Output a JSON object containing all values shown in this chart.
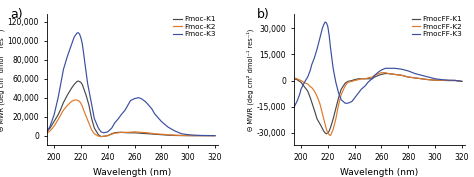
{
  "panel_a": {
    "title": "a)",
    "ylabel": "Θ MWR (deg cm² dmol⁻¹ res⁻¹)",
    "xlabel": "Wavelength (nm)",
    "xlim": [
      195,
      322
    ],
    "ylim": [
      -10000,
      128000
    ],
    "yticks": [
      0,
      20000,
      40000,
      60000,
      80000,
      100000,
      120000
    ],
    "legend": [
      "Fmoc-K1",
      "Fmoc-K2",
      "Fmoc-K3"
    ],
    "colors": [
      "#4a4a4a",
      "#e07828",
      "#3a4fa0"
    ],
    "curves": {
      "K1": {
        "x": [
          195,
          197,
          200,
          203,
          205,
          207,
          210,
          213,
          215,
          217,
          218,
          219,
          220,
          221,
          222,
          224,
          226,
          228,
          230,
          233,
          235,
          238,
          240,
          243,
          245,
          248,
          250,
          255,
          260,
          265,
          270,
          275,
          280,
          285,
          290,
          295,
          300,
          305,
          310,
          315,
          320
        ],
        "y": [
          5000,
          8000,
          15000,
          22000,
          28000,
          35000,
          43000,
          50000,
          54000,
          57000,
          57500,
          57000,
          56000,
          54000,
          50000,
          42000,
          32000,
          18000,
          8000,
          1000,
          -1000,
          -500,
          0,
          2000,
          3000,
          3500,
          3500,
          3000,
          3000,
          2500,
          2000,
          1500,
          1000,
          500,
          200,
          100,
          0,
          0,
          0,
          0,
          0
        ]
      },
      "K2": {
        "x": [
          195,
          197,
          200,
          203,
          205,
          207,
          210,
          213,
          215,
          217,
          218,
          219,
          220,
          221,
          222,
          224,
          226,
          228,
          230,
          233,
          235,
          238,
          240,
          243,
          245,
          248,
          250,
          255,
          260,
          265,
          270,
          275,
          280,
          285,
          290,
          295,
          300,
          305,
          310,
          315,
          320
        ],
        "y": [
          3000,
          5000,
          10000,
          17000,
          22000,
          27000,
          32000,
          36000,
          37500,
          37500,
          37000,
          36000,
          34000,
          31000,
          27000,
          20000,
          13000,
          6000,
          2000,
          -500,
          -1000,
          -500,
          0,
          1500,
          2500,
          3000,
          3500,
          3500,
          4000,
          3500,
          3000,
          2000,
          1500,
          1000,
          500,
          200,
          100,
          0,
          0,
          0,
          0
        ]
      },
      "K3": {
        "x": [
          195,
          197,
          200,
          203,
          205,
          207,
          210,
          213,
          215,
          217,
          218,
          219,
          220,
          221,
          222,
          223,
          225,
          228,
          230,
          233,
          235,
          237,
          240,
          243,
          245,
          248,
          250,
          253,
          255,
          257,
          260,
          263,
          265,
          268,
          270,
          273,
          275,
          280,
          285,
          290,
          295,
          300,
          305,
          310,
          315,
          320
        ],
        "y": [
          5000,
          10000,
          22000,
          40000,
          55000,
          70000,
          84000,
          96000,
          104000,
          108000,
          108500,
          107000,
          103000,
          97000,
          87000,
          76000,
          55000,
          33000,
          18000,
          8000,
          4000,
          3000,
          4000,
          8000,
          13000,
          18000,
          22000,
          27000,
          32000,
          37000,
          39000,
          40000,
          39000,
          36000,
          33000,
          28000,
          23000,
          15000,
          9000,
          5000,
          2000,
          1000,
          500,
          200,
          100,
          0
        ]
      }
    }
  },
  "panel_b": {
    "title": "b)",
    "ylabel": "Θ MWR (deg cm² dmol⁻¹ res⁻¹)",
    "xlabel": "Wavelength (nm)",
    "xlim": [
      195,
      322
    ],
    "ylim": [
      -37000,
      38000
    ],
    "yticks": [
      -30000,
      -15000,
      0,
      15000,
      30000
    ],
    "legend": [
      "FmocFF-K1",
      "FmocFF-K2",
      "FmocFF-K3"
    ],
    "colors": [
      "#4a4a4a",
      "#e07828",
      "#3a4fa0"
    ],
    "curves": {
      "K1": {
        "x": [
          195,
          197,
          200,
          202,
          205,
          207,
          210,
          212,
          215,
          217,
          218,
          219,
          220,
          221,
          222,
          224,
          226,
          228,
          230,
          233,
          235,
          238,
          240,
          243,
          245,
          248,
          250,
          253,
          255,
          258,
          260,
          263,
          265,
          270,
          275,
          280,
          285,
          290,
          295,
          300,
          305,
          310,
          315,
          320
        ],
        "y": [
          1000,
          500,
          -1000,
          -3000,
          -6000,
          -10000,
          -17000,
          -22000,
          -26000,
          -29000,
          -30000,
          -30500,
          -30000,
          -29000,
          -27000,
          -22000,
          -16000,
          -10000,
          -5000,
          -1500,
          -500,
          0,
          500,
          1000,
          1000,
          1000,
          1000,
          1000,
          2000,
          3000,
          3500,
          4000,
          4000,
          3500,
          3000,
          2000,
          1500,
          1000,
          500,
          200,
          100,
          0,
          0,
          -500
        ]
      },
      "K2": {
        "x": [
          195,
          197,
          200,
          202,
          205,
          207,
          208,
          210,
          212,
          213,
          214,
          215,
          216,
          217,
          218,
          219,
          220,
          221,
          222,
          224,
          226,
          228,
          230,
          233,
          235,
          238,
          240,
          243,
          245,
          248,
          250,
          253,
          255,
          258,
          260,
          263,
          265,
          270,
          275,
          280,
          285,
          290,
          295,
          300,
          305,
          310,
          315,
          320
        ],
        "y": [
          1500,
          1000,
          0,
          -1000,
          -2000,
          -3500,
          -4000,
          -6000,
          -9000,
          -11000,
          -13000,
          -16000,
          -19000,
          -22000,
          -25000,
          -28000,
          -30000,
          -31000,
          -31500,
          -28000,
          -22000,
          -14000,
          -8000,
          -3000,
          -1000,
          -500,
          0,
          500,
          1000,
          1000,
          1500,
          2000,
          3000,
          4000,
          4500,
          4500,
          4000,
          3500,
          3000,
          2000,
          1500,
          1000,
          500,
          200,
          100,
          0,
          0,
          -500
        ]
      },
      "K3": {
        "x": [
          195,
          197,
          199,
          200,
          202,
          203,
          205,
          207,
          208,
          210,
          212,
          213,
          214,
          215,
          216,
          217,
          218,
          219,
          220,
          221,
          222,
          224,
          226,
          228,
          230,
          233,
          235,
          238,
          240,
          243,
          245,
          248,
          250,
          253,
          255,
          258,
          260,
          263,
          265,
          270,
          275,
          280,
          285,
          290,
          295,
          300,
          305,
          310,
          315,
          320
        ],
        "y": [
          -15000,
          -12000,
          -8000,
          -5000,
          -2000,
          -500,
          2000,
          6000,
          9000,
          13000,
          18000,
          21000,
          24000,
          27000,
          30000,
          32000,
          33500,
          33000,
          31000,
          26000,
          19000,
          7000,
          -1000,
          -7000,
          -11000,
          -13000,
          -13000,
          -12000,
          -10000,
          -7000,
          -5000,
          -3000,
          -1000,
          1000,
          3000,
          5000,
          6000,
          7000,
          7000,
          7000,
          6500,
          5500,
          4000,
          3000,
          2000,
          1000,
          500,
          200,
          100,
          -500
        ]
      }
    }
  }
}
